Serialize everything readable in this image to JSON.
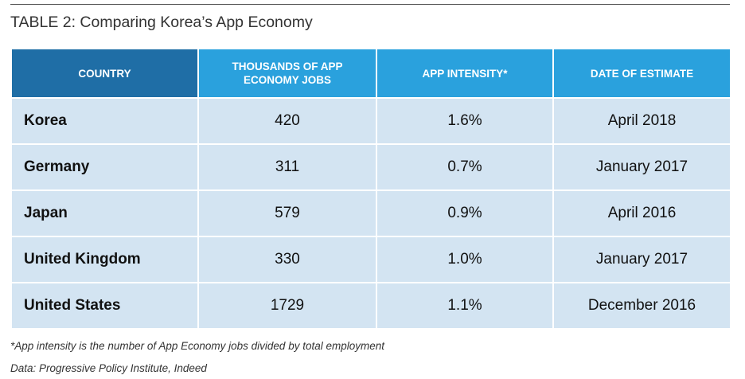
{
  "title": "TABLE 2: Comparing Korea’s App Economy",
  "table": {
    "headers": {
      "country": "COUNTRY",
      "jobs_line1": "THOUSANDS OF APP",
      "jobs_line2": "ECONOMY JOBS",
      "intensity": "APP INTENSITY*",
      "date": "DATE OF ESTIMATE"
    },
    "rows": [
      {
        "country": "Korea",
        "jobs": "420",
        "intensity": "1.6%",
        "date": "April 2018"
      },
      {
        "country": "Germany",
        "jobs": "311",
        "intensity": "0.7%",
        "date": "January 2017"
      },
      {
        "country": "Japan",
        "jobs": "579",
        "intensity": "0.9%",
        "date": "April 2016"
      },
      {
        "country": "United Kingdom",
        "jobs": "330",
        "intensity": "1.0%",
        "date": "January 2017"
      },
      {
        "country": "United States",
        "jobs": "1729",
        "intensity": "1.1%",
        "date": "December 2016"
      }
    ]
  },
  "footnote": "*App intensity is the number of App Economy jobs divided by total employment",
  "source": "Data: Progressive Policy Institute, Indeed",
  "colors": {
    "header_dark": "#1f6ea6",
    "header_light": "#2aa1dd",
    "cell_bg": "#d3e4f2"
  }
}
